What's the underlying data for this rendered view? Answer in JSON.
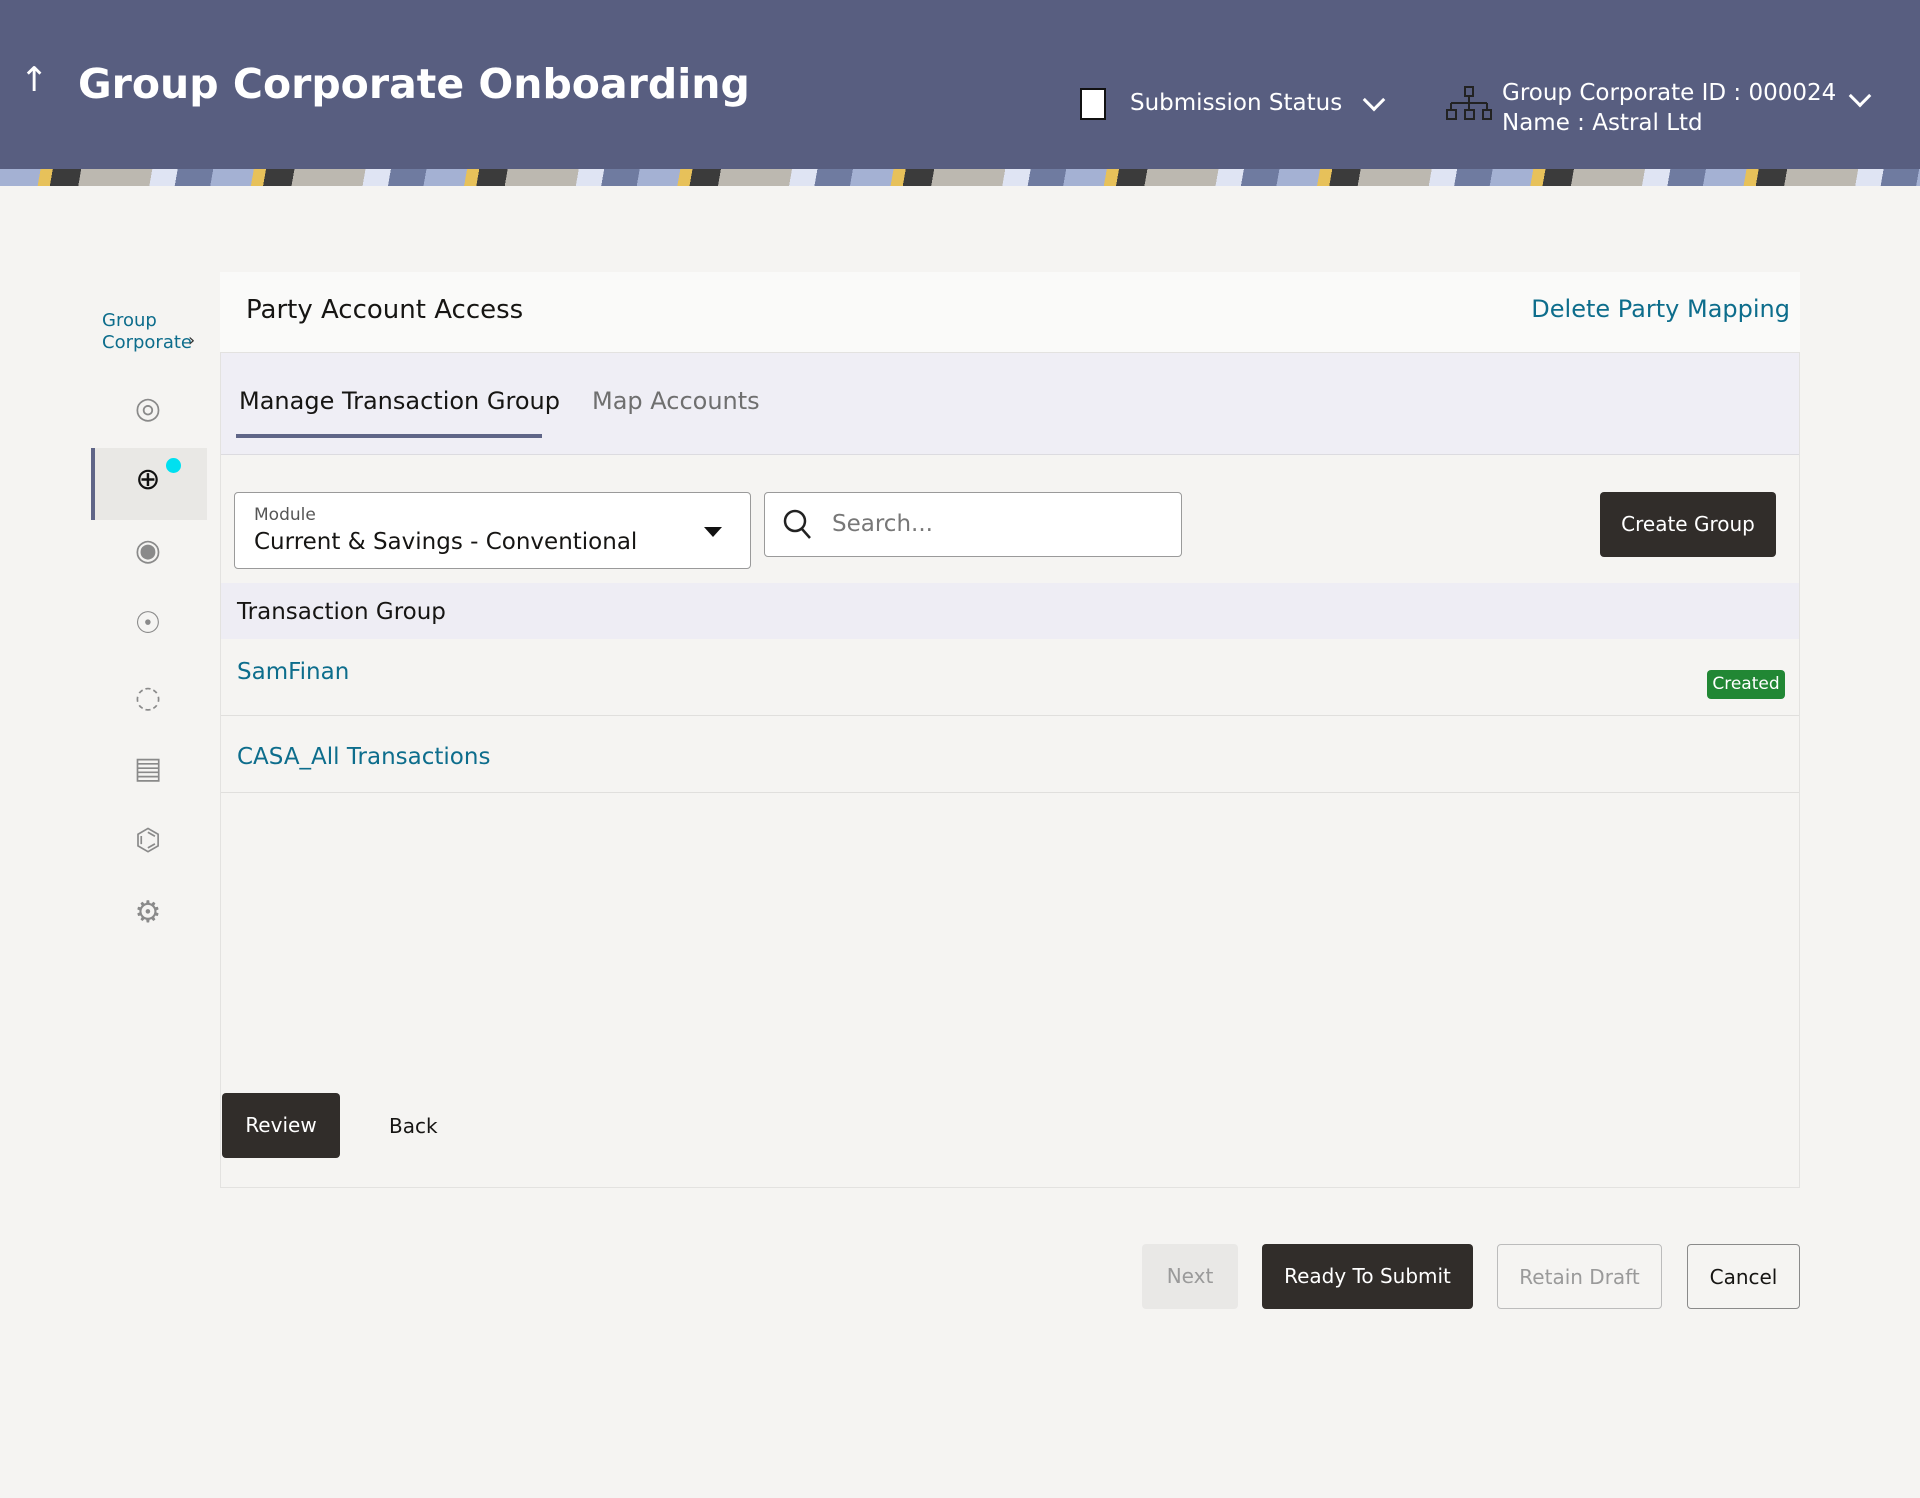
{
  "header": {
    "title": "Group Corporate Onboarding",
    "back_icon": "arrow-up-icon",
    "submission_status": "Submission Status",
    "group_corporate_id": "Group Corporate ID : 000024",
    "name": "Name : Astral Ltd"
  },
  "sidebar": {
    "breadcrumb": "Group Corporate",
    "icons": [
      "globe-refresh-icon",
      "globe-user-icon",
      "user-profile-icon",
      "users-group-icon",
      "user-edit-icon",
      "report-icon",
      "workflow-icon",
      "user-settings-icon"
    ],
    "active_index": 1
  },
  "card": {
    "title": "Party Account Access",
    "delete_link": "Delete Party Mapping",
    "tabs": [
      {
        "label": "Manage Transaction Group",
        "active": true
      },
      {
        "label": "Map Accounts",
        "active": false
      }
    ],
    "module": {
      "label": "Module",
      "value": "Current & Savings - Conventional"
    },
    "search": {
      "placeholder": "Search..."
    },
    "create_group": "Create Group",
    "table_header": "Transaction Group",
    "rows": [
      {
        "name": "SamFinan",
        "badge": "Created"
      },
      {
        "name": "CASA_All Transactions"
      }
    ],
    "review": "Review",
    "back": "Back"
  },
  "footer": {
    "next": "Next",
    "ready": "Ready To Submit",
    "retain": "Retain Draft",
    "cancel": "Cancel"
  },
  "colors": {
    "header": "#585e80",
    "link": "#0d6d8c",
    "badge": "#218734",
    "dark_button": "#312d2a"
  }
}
